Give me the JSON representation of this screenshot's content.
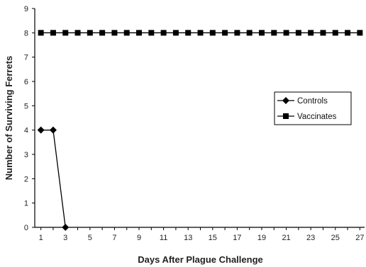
{
  "chart_data": {
    "type": "line",
    "title": "",
    "xlabel": "Days After Plague Challenge",
    "ylabel": "Number of Surviving Ferrets",
    "xlim": [
      0.5,
      27.5
    ],
    "ylim": [
      0,
      9
    ],
    "x_ticks": [
      1,
      3,
      5,
      7,
      9,
      11,
      13,
      15,
      17,
      19,
      21,
      23,
      25,
      27
    ],
    "y_ticks": [
      0,
      1,
      2,
      3,
      4,
      5,
      6,
      7,
      8,
      9
    ],
    "grid": false,
    "legend_position": "right",
    "series": [
      {
        "name": "Controls",
        "marker": "diamond",
        "color": "#000000",
        "x": [
          1,
          2,
          3
        ],
        "y": [
          4,
          4,
          0
        ]
      },
      {
        "name": "Vaccinates",
        "marker": "square",
        "color": "#000000",
        "x": [
          1,
          2,
          3,
          4,
          5,
          6,
          7,
          8,
          9,
          10,
          11,
          12,
          13,
          14,
          15,
          16,
          17,
          18,
          19,
          20,
          21,
          22,
          23,
          24,
          25,
          26,
          27
        ],
        "y": [
          8,
          8,
          8,
          8,
          8,
          8,
          8,
          8,
          8,
          8,
          8,
          8,
          8,
          8,
          8,
          8,
          8,
          8,
          8,
          8,
          8,
          8,
          8,
          8,
          8,
          8,
          8
        ]
      }
    ]
  }
}
